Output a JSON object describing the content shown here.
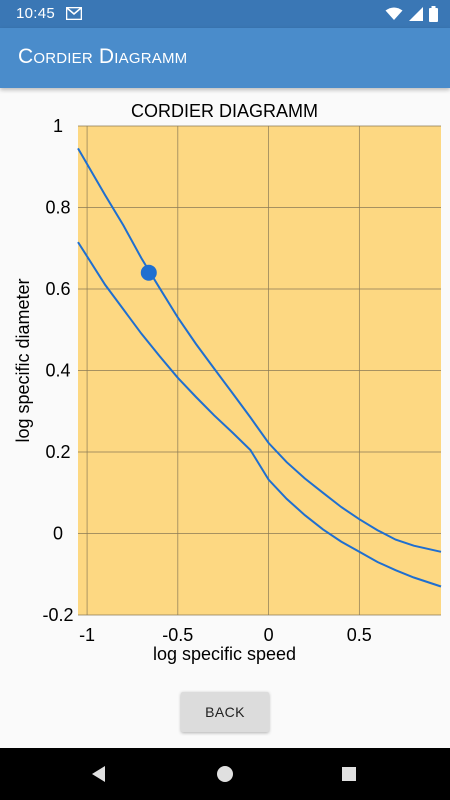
{
  "status_bar": {
    "time": "10:45",
    "icons": [
      "mail-icon",
      "wifi-icon",
      "signal-icon",
      "battery-icon"
    ]
  },
  "app_bar": {
    "title": "Cordier Diagramm"
  },
  "chart_data": {
    "type": "line",
    "title": "CORDIER DIAGRAMM",
    "xlabel": "log specific speed",
    "ylabel": "log specific diameter",
    "xlim": [
      -1.05,
      0.95
    ],
    "ylim": [
      -0.2,
      1.0
    ],
    "x_ticks": [
      {
        "value": -1,
        "label": "-1"
      },
      {
        "value": -0.5,
        "label": "-0.5"
      },
      {
        "value": 0,
        "label": "0"
      },
      {
        "value": 0.5,
        "label": "0.5"
      }
    ],
    "y_ticks": [
      {
        "value": 1,
        "label": "1"
      },
      {
        "value": 0.8,
        "label": "0.8"
      },
      {
        "value": 0.6,
        "label": "0.6"
      },
      {
        "value": 0.4,
        "label": "0.4"
      },
      {
        "value": 0.2,
        "label": "0.2"
      },
      {
        "value": 0,
        "label": "0"
      },
      {
        "value": -0.2,
        "label": "-0.2"
      }
    ],
    "grid": true,
    "legend": "none",
    "background_color": "#fdd882",
    "grid_color": "#8a7a55",
    "series": [
      {
        "color": "#1f6fd0",
        "x": [
          -1.05,
          -0.9,
          -0.8,
          -0.7,
          -0.6,
          -0.5,
          -0.4,
          -0.3,
          -0.2,
          -0.1,
          0,
          0.1,
          0.2,
          0.3,
          0.4,
          0.5,
          0.6,
          0.7,
          0.8,
          0.95
        ],
        "y": [
          0.945,
          0.83,
          0.756,
          0.675,
          0.602,
          0.53,
          0.465,
          0.405,
          0.345,
          0.285,
          0.222,
          0.175,
          0.135,
          0.1,
          0.065,
          0.035,
          0.008,
          -0.015,
          -0.03,
          -0.045
        ]
      },
      {
        "color": "#1f6fd0",
        "x": [
          -1.05,
          -0.9,
          -0.8,
          -0.7,
          -0.6,
          -0.5,
          -0.4,
          -0.3,
          -0.2,
          -0.1,
          0,
          0.1,
          0.2,
          0.3,
          0.4,
          0.5,
          0.6,
          0.7,
          0.8,
          0.95
        ],
        "y": [
          0.715,
          0.61,
          0.55,
          0.49,
          0.435,
          0.382,
          0.335,
          0.29,
          0.248,
          0.205,
          0.132,
          0.085,
          0.045,
          0.01,
          -0.02,
          -0.045,
          -0.07,
          -0.09,
          -0.108,
          -0.13
        ]
      }
    ],
    "points": [
      {
        "x": -0.66,
        "y": 0.64,
        "color": "#1f6fd0"
      }
    ]
  },
  "back_button": {
    "label": "BACK"
  },
  "nav_bar": {
    "icons": [
      "back-icon",
      "home-icon",
      "recents-icon"
    ]
  }
}
